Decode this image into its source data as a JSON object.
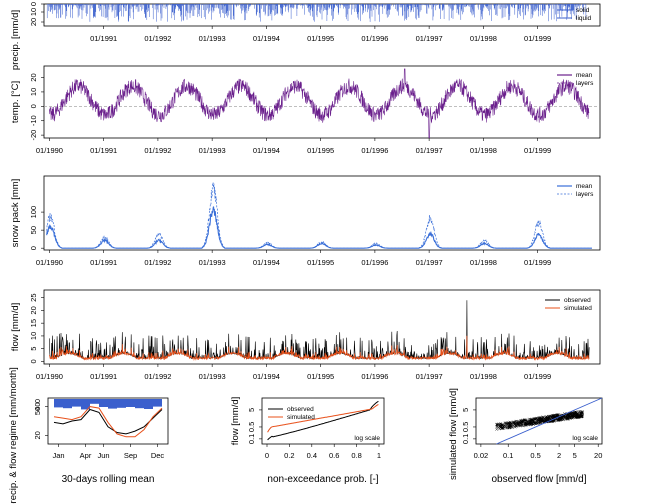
{
  "colors": {
    "precip": "#3a5fcd",
    "temp": "#6a1f8c",
    "snow": "#3a6fd8",
    "observed": "#000000",
    "simulated": "#e8501a",
    "zero_line": "#999999"
  },
  "chart_data": [
    {
      "id": "precip",
      "type": "bar",
      "ylabel": "precip. [mm/d]",
      "yticks": [
        "0",
        "10",
        "20"
      ],
      "xticks": [
        "01/1991",
        "01/1992",
        "01/1993",
        "01/1994",
        "01/1995",
        "01/1996",
        "01/1997",
        "01/1998",
        "01/1999"
      ],
      "legend": [
        "solid",
        "liquid"
      ],
      "legend_position": "top-right",
      "series": [
        {
          "name": "solid"
        },
        {
          "name": "liquid"
        }
      ]
    },
    {
      "id": "temp",
      "type": "line",
      "ylabel": "temp. [°C]",
      "yticks": [
        "-20",
        "-10",
        "0",
        "10",
        "20"
      ],
      "ylim": [
        -22,
        28
      ],
      "xticks": [
        "01/1990",
        "01/1991",
        "01/1992",
        "01/1993",
        "01/1994",
        "01/1995",
        "01/1996",
        "01/1997",
        "01/1998",
        "01/1999"
      ],
      "legend": [
        "mean",
        "layers"
      ],
      "legend_position": "top-right",
      "series": [
        {
          "name": "mean",
          "annual_mean": 4,
          "amplitude": 10
        }
      ]
    },
    {
      "id": "snow",
      "type": "line",
      "ylabel": "snow pack [mm]",
      "yticks": [
        "0",
        "50",
        "100"
      ],
      "ylim": [
        -5,
        200
      ],
      "xticks": [
        "01/1990",
        "01/1991",
        "01/1992",
        "01/1993",
        "01/1994",
        "01/1995",
        "01/1996",
        "01/1997",
        "01/1998",
        "01/1999"
      ],
      "legend": [
        "mean",
        "layers"
      ],
      "legend_position": "top-right",
      "annual_peaks": [
        {
          "year": 1990,
          "mean": 70,
          "layer_max": 100
        },
        {
          "year": 1991,
          "mean": 25,
          "layer_max": 35
        },
        {
          "year": 1992,
          "mean": 25,
          "layer_max": 45
        },
        {
          "year": 1993,
          "mean": 120,
          "layer_max": 190
        },
        {
          "year": 1994,
          "mean": 12,
          "layer_max": 18
        },
        {
          "year": 1995,
          "mean": 15,
          "layer_max": 20
        },
        {
          "year": 1996,
          "mean": 10,
          "layer_max": 15
        },
        {
          "year": 1997,
          "mean": 45,
          "layer_max": 95
        },
        {
          "year": 1998,
          "mean": 15,
          "layer_max": 25
        },
        {
          "year": 1999,
          "mean": 45,
          "layer_max": 80
        }
      ]
    },
    {
      "id": "flow",
      "type": "line",
      "ylabel": "flow [mm/d]",
      "yticks": [
        "0",
        "5",
        "10",
        "15",
        "20",
        "25"
      ],
      "ylim": [
        -1,
        28
      ],
      "xticks": [
        "01/1990",
        "01/1991",
        "01/1992",
        "01/1993",
        "01/1994",
        "01/1995",
        "01/1996",
        "01/1997",
        "01/1998",
        "01/1999"
      ],
      "legend": [
        "observed",
        "simulated"
      ],
      "legend_position": "top-right",
      "series": [
        {
          "name": "observed",
          "max": 24
        },
        {
          "name": "simulated"
        }
      ]
    },
    {
      "id": "regime",
      "type": "line",
      "ylabel": "precip. & flow regime [mm/month]",
      "xlabel": "30-days rolling mean",
      "xticks": [
        "Jan",
        "Apr",
        "Jun",
        "Sep",
        "Dec"
      ],
      "yticks_left": [
        "20",
        "40"
      ],
      "yticks_right": [
        "0",
        "50"
      ],
      "observed": [
        29,
        28,
        30,
        31,
        38,
        36,
        26,
        22,
        21,
        23,
        26,
        32,
        38
      ],
      "simulated": [
        33,
        32,
        31,
        33,
        40,
        39,
        29,
        21,
        19,
        19,
        24,
        33,
        39
      ],
      "precip_bars": [
        2.1,
        2.3,
        1.9,
        2.6,
        1.2,
        2.0,
        2.4,
        2.2,
        2.0,
        2.3,
        2.5,
        1.9
      ]
    },
    {
      "id": "fdc",
      "type": "line",
      "ylabel": "flow [mm/d]",
      "xlabel": "non-exceedance prob. [-]",
      "xticks": [
        "0",
        "0.2",
        "0.4",
        "0.6",
        "0.8",
        "1"
      ],
      "yticks": [
        "0.1",
        "0.5",
        "5"
      ],
      "ylim": [
        0.05,
        25
      ],
      "scale_note": "log scale",
      "legend": [
        "observed",
        "simulated"
      ]
    },
    {
      "id": "scatter",
      "type": "scatter",
      "ylabel": "simulated flow [mm/d]",
      "xlabel": "observed flow [mm/d]",
      "xticks": [
        "0.02",
        "0.1",
        "0.5",
        "2",
        "5",
        "20"
      ],
      "yticks": [
        "0.1",
        "0.5",
        "5"
      ],
      "xlim": [
        0.015,
        25
      ],
      "ylim": [
        0.05,
        25
      ],
      "scale_note": "log scale"
    }
  ]
}
